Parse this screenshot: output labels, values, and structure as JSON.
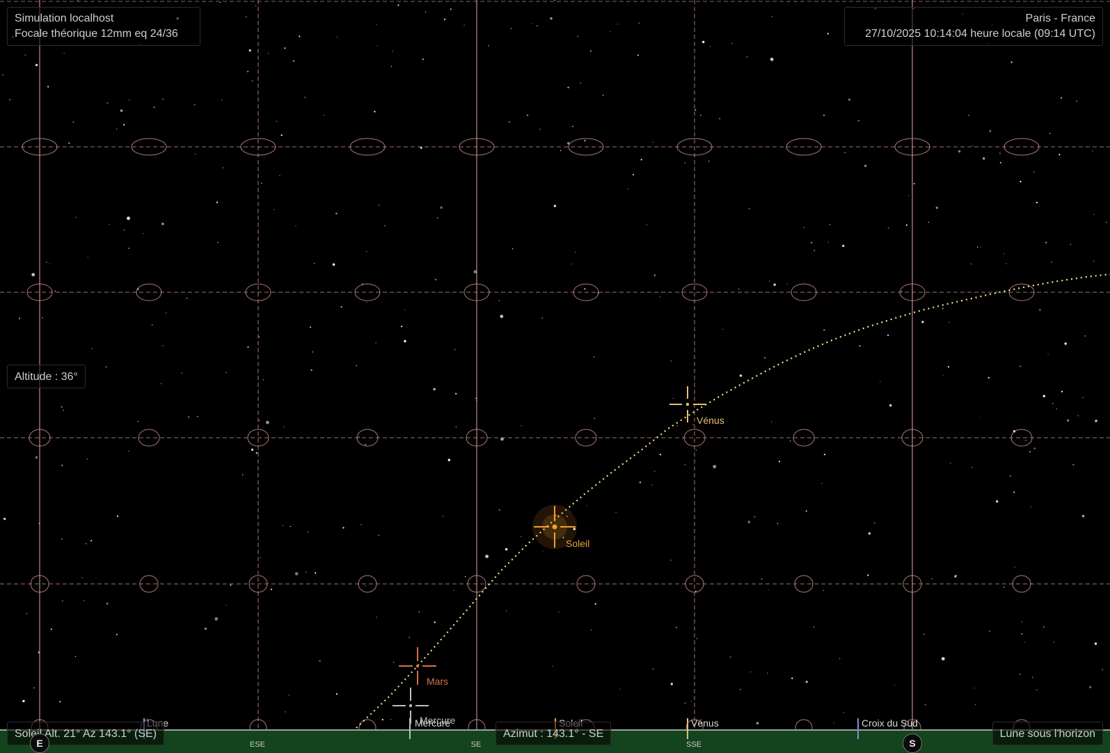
{
  "header": {
    "simulation": "Simulation localhost",
    "focal": "Focale théorique 12mm eq 24/36",
    "location": "Paris - France",
    "datetime": "27/10/2025 10:14:04 heure locale (09:14 UTC)"
  },
  "altitude_label": "Altitude : 36°",
  "status": {
    "sun": "Soleil Alt. 21° Az 143.1° (SE)",
    "azimuth": "Azimut : 143.1° - SE",
    "moon": "Lune sous l'horizon"
  },
  "compass": {
    "cardinals": [
      "E",
      "S"
    ],
    "intercardinals": [
      "ESE",
      "SE",
      "SSE"
    ]
  },
  "bodies": [
    {
      "name": "Vénus",
      "color": "#e8c27a"
    },
    {
      "name": "Soleil",
      "color": "#f0a030"
    },
    {
      "name": "Mars",
      "color": "#d9704e"
    },
    {
      "name": "Mercure",
      "color": "#bfbfbf"
    }
  ],
  "horizon_labels": [
    {
      "name": "Lune",
      "color": "#7aa0e0"
    },
    {
      "name": "Mercure",
      "color": "#bfbfbf"
    },
    {
      "name": "Soleil",
      "color": "#f0a030"
    },
    {
      "name": "Vénus",
      "color": "#e8c27a"
    },
    {
      "name": "Croix du Sud",
      "color": "#8f86e6"
    }
  ],
  "colors": {
    "grid": "#e8a0a0",
    "ecliptic": "#f0e68c",
    "ground": "#13441d"
  }
}
